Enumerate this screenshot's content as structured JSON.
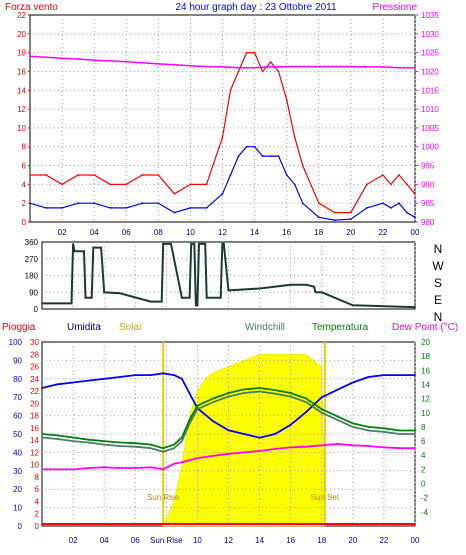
{
  "chart_data": [
    {
      "type": "line",
      "title": "24 hour graph day : 23 Ottobre 2011",
      "left_axis_label": "Forza vento",
      "right_axis_label": "Pressione",
      "x_ticks": [
        "02",
        "04",
        "06",
        "08",
        "10",
        "12",
        "14",
        "16",
        "18",
        "20",
        "22",
        "00"
      ],
      "ylim_left": [
        0,
        22
      ],
      "yticks_left": [
        "0",
        "2",
        "4",
        "6",
        "8",
        "10",
        "12",
        "14",
        "16",
        "18",
        "20",
        "22"
      ],
      "ylim_right": [
        980,
        1035
      ],
      "yticks_right": [
        "980",
        "985",
        "990",
        "995",
        "1000",
        "1005",
        "1010",
        "1015",
        "1020",
        "1025",
        "1030",
        "1035"
      ],
      "x_hours": [
        0,
        1,
        2,
        3,
        4,
        5,
        6,
        7,
        8,
        9,
        10,
        11,
        12,
        12.5,
        13,
        13.5,
        14,
        14.5,
        15,
        15.5,
        16,
        16.5,
        17,
        18,
        19,
        20,
        21,
        22,
        22.5,
        23,
        23.5,
        24
      ],
      "series": [
        {
          "key": "gust",
          "color": "#ff0000",
          "values": [
            5,
            5,
            4,
            5,
            5,
            4,
            4,
            5,
            5,
            3,
            4,
            4,
            9,
            14,
            16,
            18,
            18,
            16,
            17,
            16,
            13,
            9,
            6,
            2,
            1,
            1,
            4,
            5,
            4,
            5,
            4,
            3
          ]
        },
        {
          "key": "wind",
          "color": "#0000ff",
          "values": [
            2,
            1.5,
            1.5,
            2,
            2,
            1.5,
            1.5,
            2,
            2,
            1,
            1.5,
            1.5,
            3,
            5,
            7,
            8,
            8,
            7,
            7,
            7,
            5,
            4,
            2,
            0.5,
            0.2,
            0.3,
            1.5,
            2,
            1.5,
            2,
            1,
            0.5
          ]
        },
        {
          "key": "pressure",
          "color": "#ff00ff",
          "values": [
            1024,
            1023.8,
            1023.5,
            1023.3,
            1023,
            1022.8,
            1022.6,
            1022.3,
            1022,
            1021.8,
            1021.5,
            1021.3,
            1021.2,
            1021.1,
            1021,
            1021,
            1021,
            1021.1,
            1021.2,
            1021.2,
            1021.3,
            1021.3,
            1021.3,
            1021.3,
            1021.3,
            1021.3,
            1021.2,
            1021.2,
            1021.1,
            1021,
            1021,
            1021
          ]
        }
      ]
    },
    {
      "type": "line",
      "title": "",
      "ylim": [
        0,
        360
      ],
      "yticks": [
        "0",
        "90",
        "180",
        "270",
        "360"
      ],
      "direction_labels": [
        "N",
        "W",
        "S",
        "E",
        "N"
      ],
      "color": "#1a3a3a",
      "x_hours": [
        0,
        1.9,
        2,
        2.1,
        2.7,
        2.8,
        3.2,
        3.3,
        3.8,
        4,
        5,
        7,
        7.7,
        7.8,
        8.3,
        9,
        9.5,
        9.6,
        9.8,
        9.9,
        10,
        10.1,
        10.5,
        10.6,
        11.5,
        11.6,
        11.7,
        12,
        14,
        16,
        17,
        17.5,
        17.6,
        18,
        20,
        22,
        24
      ],
      "values": [
        30,
        30,
        350,
        310,
        310,
        60,
        60,
        330,
        330,
        90,
        85,
        40,
        40,
        350,
        350,
        60,
        60,
        350,
        350,
        20,
        20,
        350,
        350,
        60,
        60,
        350,
        350,
        100,
        110,
        130,
        130,
        120,
        90,
        90,
        20,
        15,
        10
      ]
    },
    {
      "type": "line",
      "legend": [
        "Pioggia",
        "Umidita",
        "Solar",
        "Windchill",
        "Temperatura",
        "Dew Point (°C)"
      ],
      "yticks_pioggia": [
        "0",
        "2",
        "4",
        "6",
        "8",
        "10",
        "12",
        "14",
        "16",
        "18",
        "20",
        "22",
        "24",
        "26",
        "28",
        "30"
      ],
      "yticks_umidita": [
        "0",
        "10",
        "20",
        "30",
        "40",
        "50",
        "60",
        "70",
        "80",
        "90",
        "100"
      ],
      "yticks_temp": [
        "-4",
        "-2",
        "0",
        "2",
        "4",
        "6",
        "8",
        "10",
        "12",
        "14",
        "16",
        "18",
        "20"
      ],
      "ylim_umidita": [
        0,
        100
      ],
      "ylim_temp": [
        -6,
        20
      ],
      "x_ticks": [
        "02",
        "04",
        "06",
        "Sun Rise",
        "10",
        "12",
        "14",
        "16",
        "18",
        "20",
        "22",
        "00"
      ],
      "sunrise_hour": 7.8,
      "sunset_hour": 18.2,
      "sunrise_label": "Sun Rise",
      "sunset_label": "Sun Set",
      "x_hours": [
        0,
        1,
        2,
        3,
        4,
        5,
        6,
        7,
        7.8,
        8.5,
        9,
        9.5,
        10,
        11,
        12,
        13,
        14,
        15,
        16,
        17,
        18,
        19,
        20,
        21,
        22,
        23,
        24
      ],
      "series": [
        {
          "key": "umidita",
          "color": "#0000ff",
          "axis": "umidita",
          "values": [
            75,
            77,
            78,
            79,
            80,
            81,
            82,
            82,
            83,
            82,
            80,
            72,
            64,
            57,
            52,
            50,
            48,
            50,
            55,
            62,
            70,
            74,
            78,
            81,
            82,
            82,
            82
          ]
        },
        {
          "key": "temperatura",
          "color": "#008000",
          "axis": "temp",
          "values": [
            7,
            6.8,
            6.5,
            6.2,
            6.0,
            5.8,
            5.7,
            5.5,
            5.0,
            5.5,
            6.5,
            9,
            11,
            12,
            12.8,
            13.3,
            13.5,
            13.2,
            12.8,
            12,
            10.5,
            9.5,
            8.5,
            8,
            7.8,
            7.5,
            7.5
          ]
        },
        {
          "key": "windchill",
          "color": "#4a7a6a",
          "axis": "temp",
          "values": [
            6.5,
            6.3,
            6.0,
            5.8,
            5.5,
            5.3,
            5.2,
            5.0,
            4.5,
            5.0,
            6.0,
            8.5,
            10.5,
            11.5,
            12.3,
            12.8,
            13.0,
            12.7,
            12.3,
            11.5,
            10.0,
            9.0,
            8.0,
            7.5,
            7.3,
            7.0,
            7.0
          ]
        },
        {
          "key": "dewpoint",
          "color": "#ff00ff",
          "axis": "temp",
          "values": [
            2,
            2,
            2,
            2.2,
            2.3,
            2.2,
            2.2,
            2.3,
            2,
            2.8,
            3,
            3.3,
            3.6,
            3.9,
            4.2,
            4.4,
            4.6,
            4.9,
            5.1,
            5.2,
            5.4,
            5.6,
            5.4,
            5.3,
            5.1,
            5.0,
            5.0
          ]
        }
      ],
      "solar": {
        "color": "#ffff00",
        "ylim": [
          0,
          30
        ],
        "x_hours": [
          7.8,
          8.5,
          9,
          9.5,
          10,
          10.5,
          11,
          12,
          13,
          14,
          15,
          15.5,
          16,
          16.5,
          17,
          17.5,
          18,
          18.2
        ],
        "values": [
          0,
          4,
          10,
          18,
          22,
          24,
          25,
          26,
          27,
          28,
          28,
          28,
          28,
          28,
          28,
          27,
          26,
          0
        ]
      }
    }
  ]
}
